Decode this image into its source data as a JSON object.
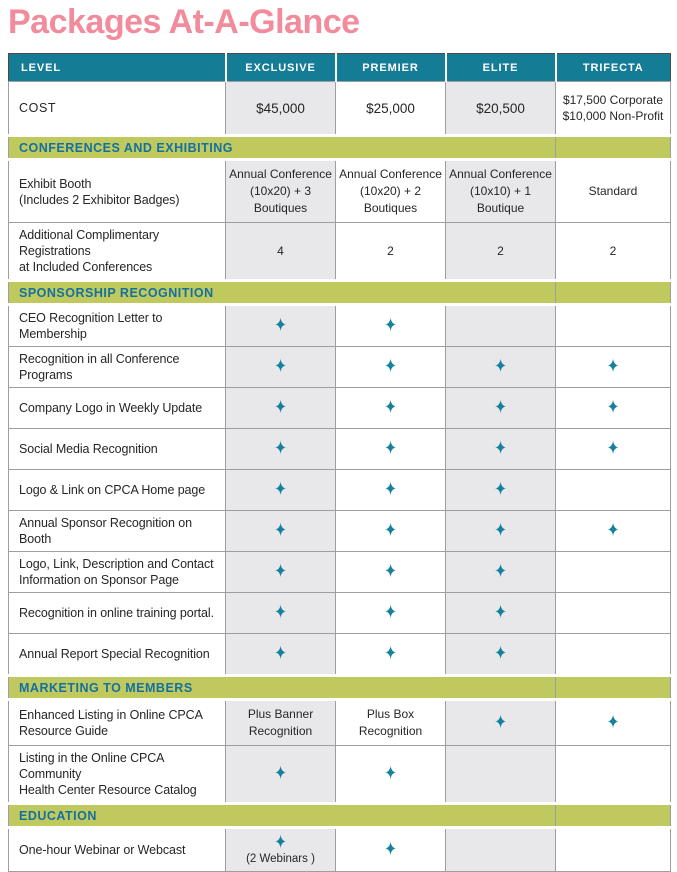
{
  "title": "Packages At-A-Glance",
  "colors": {
    "title_pink": "#F28B9B",
    "header_teal": "#157C96",
    "section_green": "#BFC95E",
    "section_text_blue": "#1470A1",
    "star_teal": "#16819D",
    "cell_shade_gray": "#E8E8EA",
    "grid_gray": "#9C9EA1"
  },
  "icons": {
    "star": "✦"
  },
  "header": {
    "columns": [
      "LEVEL",
      "EXCLUSIVE",
      "PREMIER",
      "ELITE",
      "TRIFECTA"
    ]
  },
  "rows": [
    {
      "kind": "cost",
      "label_lines": [
        "COST"
      ],
      "values": [
        {
          "lines": [
            "$45,000"
          ]
        },
        {
          "lines": [
            "$25,000"
          ]
        },
        {
          "lines": [
            "$20,500"
          ]
        },
        {
          "lines": [
            "$17,500 Corporate",
            "$10,000 Non-Profit"
          ]
        }
      ]
    },
    {
      "kind": "section",
      "label": "CONFERENCES AND EXHIBITING"
    },
    {
      "kind": "data",
      "label_lines": [
        "Exhibit Booth",
        "(Includes 2 Exhibitor Badges)"
      ],
      "values": [
        {
          "lines": [
            "Annual Conference",
            "(10x20) + 3 Boutiques"
          ]
        },
        {
          "lines": [
            "Annual Conference",
            "(10x20) + 2 Boutiques"
          ]
        },
        {
          "lines": [
            "Annual Conference",
            "(10x10) + 1 Boutique"
          ]
        },
        {
          "lines": [
            "Standard"
          ]
        }
      ]
    },
    {
      "kind": "data",
      "label_lines": [
        "Additional Complimentary  Registrations",
        "at  Included Conferences"
      ],
      "values": [
        {
          "lines": [
            "4"
          ]
        },
        {
          "lines": [
            "2"
          ]
        },
        {
          "lines": [
            "2"
          ]
        },
        {
          "lines": [
            "2"
          ]
        }
      ]
    },
    {
      "kind": "section",
      "label": "SPONSORSHIP RECOGNITION"
    },
    {
      "kind": "data",
      "label_lines": [
        "CEO Recognition Letter to Membership"
      ],
      "values": [
        {
          "star": true
        },
        {
          "star": true
        },
        {},
        {}
      ]
    },
    {
      "kind": "data",
      "label_lines": [
        "Recognition in all Conference Programs"
      ],
      "values": [
        {
          "star": true
        },
        {
          "star": true
        },
        {
          "star": true
        },
        {
          "star": true
        }
      ]
    },
    {
      "kind": "data",
      "label_lines": [
        "Company Logo in Weekly Update"
      ],
      "values": [
        {
          "star": true
        },
        {
          "star": true
        },
        {
          "star": true
        },
        {
          "star": true
        }
      ]
    },
    {
      "kind": "data",
      "label_lines": [
        "Social Media Recognition"
      ],
      "values": [
        {
          "star": true
        },
        {
          "star": true
        },
        {
          "star": true
        },
        {
          "star": true
        }
      ]
    },
    {
      "kind": "data",
      "label_lines": [
        "Logo & Link on CPCA Home page"
      ],
      "values": [
        {
          "star": true
        },
        {
          "star": true
        },
        {
          "star": true
        },
        {}
      ]
    },
    {
      "kind": "data",
      "label_lines": [
        "Annual Sponsor Recognition on Booth"
      ],
      "values": [
        {
          "star": true
        },
        {
          "star": true
        },
        {
          "star": true
        },
        {
          "star": true
        }
      ]
    },
    {
      "kind": "data",
      "label_lines": [
        "Logo, Link, Description and Contact",
        "Information on Sponsor Page"
      ],
      "values": [
        {
          "star": true
        },
        {
          "star": true
        },
        {
          "star": true
        },
        {}
      ]
    },
    {
      "kind": "data",
      "label_lines": [
        "Recognition in online training portal."
      ],
      "values": [
        {
          "star": true
        },
        {
          "star": true
        },
        {
          "star": true
        },
        {}
      ]
    },
    {
      "kind": "data",
      "label_lines": [
        "Annual Report Special Recognition"
      ],
      "values": [
        {
          "star": true
        },
        {
          "star": true
        },
        {
          "star": true
        },
        {}
      ]
    },
    {
      "kind": "section",
      "label": "MARKETING TO MEMBERS"
    },
    {
      "kind": "data",
      "label_lines": [
        "Enhanced Listing in Online CPCA",
        "Resource Guide"
      ],
      "values": [
        {
          "lines": [
            "Plus Banner",
            "Recognition"
          ]
        },
        {
          "lines": [
            "Plus Box",
            "Recognition"
          ]
        },
        {
          "star": true
        },
        {
          "star": true
        }
      ]
    },
    {
      "kind": "data",
      "label_lines": [
        "Listing in the Online CPCA Community",
        "Health Center Resource Catalog"
      ],
      "values": [
        {
          "star": true
        },
        {
          "star": true
        },
        {},
        {}
      ]
    },
    {
      "kind": "section",
      "label": "EDUCATION"
    },
    {
      "kind": "data",
      "label_lines": [
        "One-hour Webinar or Webcast"
      ],
      "values": [
        {
          "star": true,
          "note": "(2 Webinars )"
        },
        {
          "star": true
        },
        {},
        {}
      ]
    }
  ]
}
